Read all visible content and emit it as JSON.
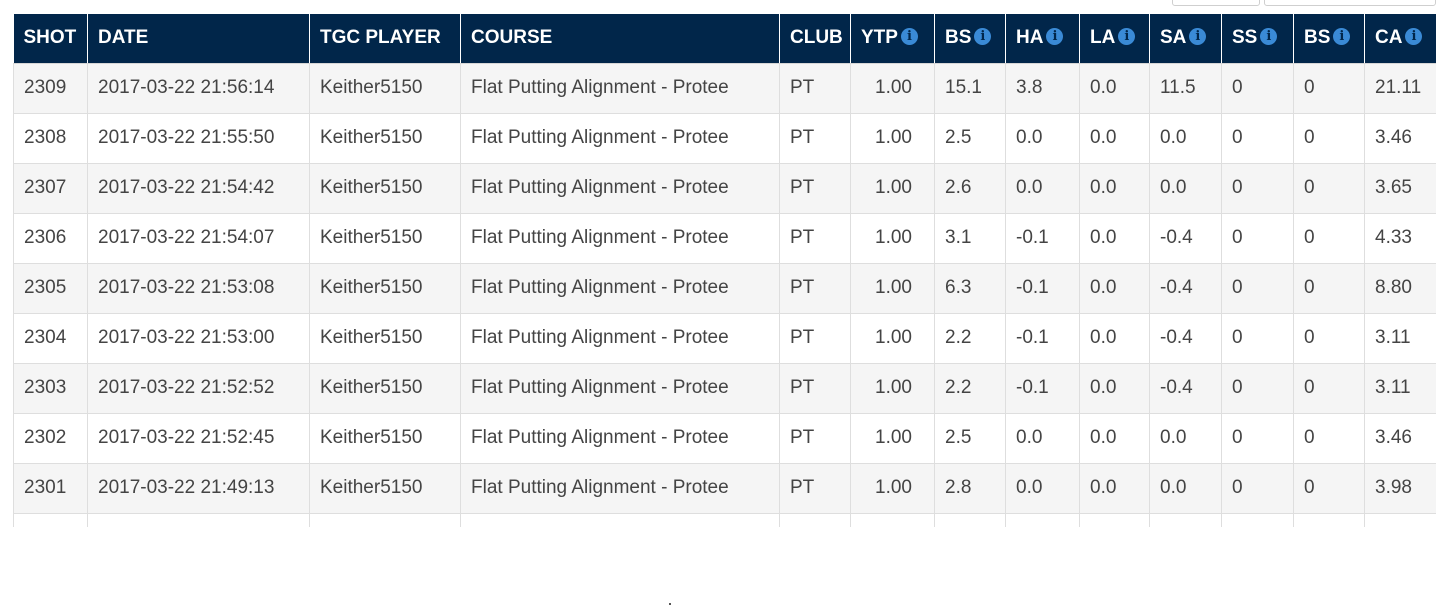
{
  "colors": {
    "header_bg": "#01264a",
    "header_text": "#ffffff",
    "info_icon": "#3a8ad6",
    "row_alt": "#f5f5f5",
    "row_text": "#444444"
  },
  "icons": {
    "info": "info-circle-icon"
  },
  "table": {
    "columns": [
      {
        "key": "shot",
        "label": "SHOT",
        "info": false
      },
      {
        "key": "date",
        "label": "DATE",
        "info": false
      },
      {
        "key": "player",
        "label": "TGC PLAYER",
        "info": false
      },
      {
        "key": "course",
        "label": "COURSE",
        "info": false
      },
      {
        "key": "club",
        "label": "CLUB",
        "info": false
      },
      {
        "key": "ytp",
        "label": "YTP",
        "info": true
      },
      {
        "key": "bs",
        "label": "BS",
        "info": true
      },
      {
        "key": "ha",
        "label": "HA",
        "info": true
      },
      {
        "key": "la",
        "label": "LA",
        "info": true
      },
      {
        "key": "sa",
        "label": "SA",
        "info": true
      },
      {
        "key": "ss",
        "label": "SS",
        "info": true
      },
      {
        "key": "bs2",
        "label": "BS",
        "info": true
      },
      {
        "key": "ca",
        "label": "CA",
        "info": true
      }
    ],
    "rows": [
      [
        "2309",
        "2017-03-22 21:56:14",
        "Keither5150",
        "Flat Putting Alignment - Protee",
        "PT",
        "1.00",
        "15.1",
        "3.8",
        "0.0",
        "11.5",
        "0",
        "0",
        "21.11"
      ],
      [
        "2308",
        "2017-03-22 21:55:50",
        "Keither5150",
        "Flat Putting Alignment - Protee",
        "PT",
        "1.00",
        "2.5",
        "0.0",
        "0.0",
        "0.0",
        "0",
        "0",
        "3.46"
      ],
      [
        "2307",
        "2017-03-22 21:54:42",
        "Keither5150",
        "Flat Putting Alignment - Protee",
        "PT",
        "1.00",
        "2.6",
        "0.0",
        "0.0",
        "0.0",
        "0",
        "0",
        "3.65"
      ],
      [
        "2306",
        "2017-03-22 21:54:07",
        "Keither5150",
        "Flat Putting Alignment - Protee",
        "PT",
        "1.00",
        "3.1",
        "-0.1",
        "0.0",
        "-0.4",
        "0",
        "0",
        "4.33"
      ],
      [
        "2305",
        "2017-03-22 21:53:08",
        "Keither5150",
        "Flat Putting Alignment - Protee",
        "PT",
        "1.00",
        "6.3",
        "-0.1",
        "0.0",
        "-0.4",
        "0",
        "0",
        "8.80"
      ],
      [
        "2304",
        "2017-03-22 21:53:00",
        "Keither5150",
        "Flat Putting Alignment - Protee",
        "PT",
        "1.00",
        "2.2",
        "-0.1",
        "0.0",
        "-0.4",
        "0",
        "0",
        "3.11"
      ],
      [
        "2303",
        "2017-03-22 21:52:52",
        "Keither5150",
        "Flat Putting Alignment - Protee",
        "PT",
        "1.00",
        "2.2",
        "-0.1",
        "0.0",
        "-0.4",
        "0",
        "0",
        "3.11"
      ],
      [
        "2302",
        "2017-03-22 21:52:45",
        "Keither5150",
        "Flat Putting Alignment - Protee",
        "PT",
        "1.00",
        "2.5",
        "0.0",
        "0.0",
        "0.0",
        "0",
        "0",
        "3.46"
      ],
      [
        "2301",
        "2017-03-22 21:49:13",
        "Keither5150",
        "Flat Putting Alignment - Protee",
        "PT",
        "1.00",
        "2.8",
        "0.0",
        "0.0",
        "0.0",
        "0",
        "0",
        "3.98"
      ]
    ]
  }
}
